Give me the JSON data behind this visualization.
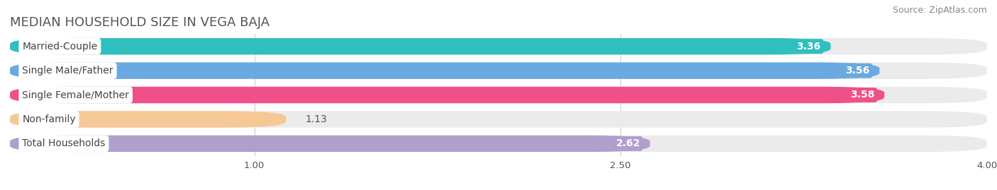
{
  "title": "MEDIAN HOUSEHOLD SIZE IN VEGA BAJA",
  "source": "Source: ZipAtlas.com",
  "categories": [
    "Married-Couple",
    "Single Male/Father",
    "Single Female/Mother",
    "Non-family",
    "Total Households"
  ],
  "values": [
    3.36,
    3.56,
    3.58,
    1.13,
    2.62
  ],
  "bar_colors": [
    "#2fbfbf",
    "#6aaae0",
    "#f0508a",
    "#f5c895",
    "#b09fcc"
  ],
  "bar_bg_colors": [
    "#ebebeb",
    "#ebebeb",
    "#ebebeb",
    "#ebebeb",
    "#ebebeb"
  ],
  "xlim": [
    0,
    4.0
  ],
  "xticks": [
    1.0,
    2.5,
    4.0
  ],
  "title_fontsize": 13,
  "source_fontsize": 9,
  "label_fontsize": 10,
  "value_fontsize": 10,
  "bg_color": "#ffffff"
}
